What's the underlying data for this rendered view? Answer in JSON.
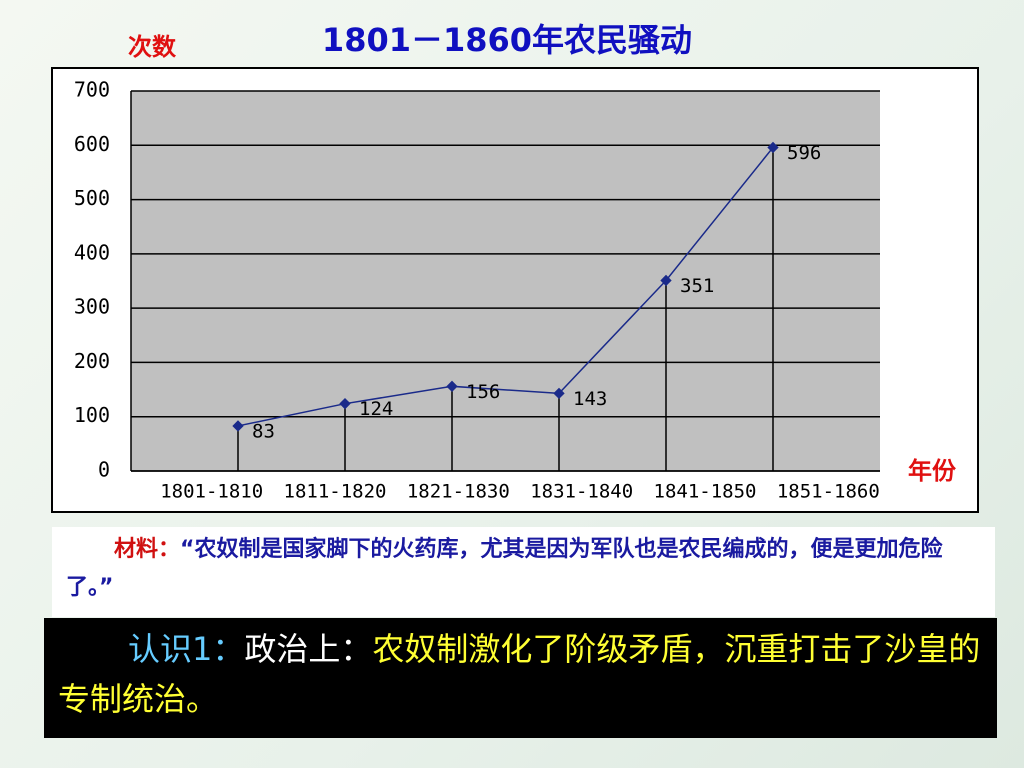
{
  "chart_data": {
    "type": "line",
    "title": "1801－1860年农民骚动",
    "y_label": "次数",
    "x_label": "年份",
    "categories": [
      "1801-1810",
      "1811-1820",
      "1821-1830",
      "1831-1840",
      "1841-1850",
      "1851-1860"
    ],
    "values": [
      83,
      124,
      156,
      143,
      351,
      596
    ],
    "color": "#1a2a8a",
    "ylim": [
      0,
      700
    ],
    "yticks": [
      0,
      100,
      200,
      300,
      400,
      500,
      600,
      700
    ],
    "grid": true,
    "drop_lines": true
  },
  "material": {
    "label": "材料：",
    "text": "“农奴制是国家脚下的火药库，尤其是因为军队也是农民编成的，便是更加危险了。”"
  },
  "conclusion": {
    "label": "认识1：",
    "aspect": "政治上：",
    "text": "农奴制激化了阶级矛盾，沉重打击了沙皇的专制统治。"
  }
}
